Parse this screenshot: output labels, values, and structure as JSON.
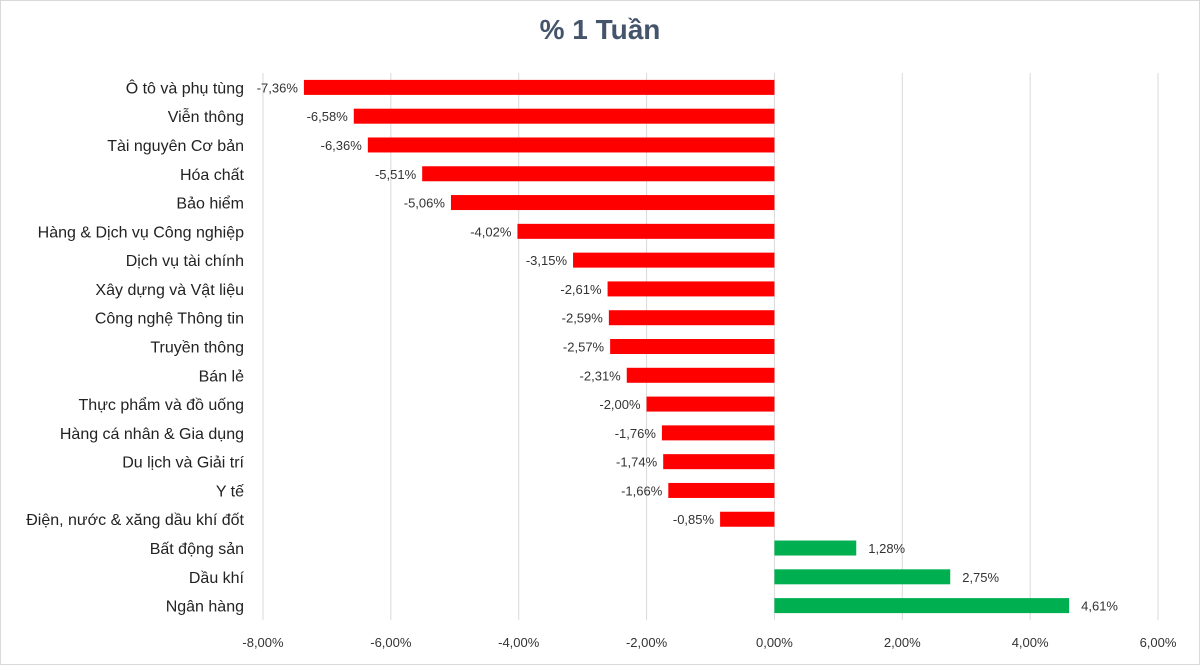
{
  "chart_data": {
    "type": "bar",
    "orientation": "horizontal",
    "title": "% 1 Tuần",
    "categories": [
      "Ô tô và phụ tùng",
      "Viễn thông",
      "Tài nguyên Cơ bản",
      "Hóa chất",
      "Bảo hiểm",
      "Hàng & Dịch vụ Công nghiệp",
      "Dịch vụ tài chính",
      "Xây dựng và Vật liệu",
      "Công nghệ Thông tin",
      "Truyền thông",
      "Bán lẻ",
      "Thực phẩm và đồ uống",
      "Hàng cá nhân & Gia dụng",
      "Du lịch và Giải trí",
      "Y tế",
      "Điện, nước & xăng dầu khí đốt",
      "Bất động sản",
      "Dầu khí",
      "Ngân hàng"
    ],
    "values": [
      -7.36,
      -6.58,
      -6.36,
      -5.51,
      -5.06,
      -4.02,
      -3.15,
      -2.61,
      -2.59,
      -2.57,
      -2.31,
      -2.0,
      -1.76,
      -1.74,
      -1.66,
      -0.85,
      1.28,
      2.75,
      4.61
    ],
    "value_labels": [
      "-7,36%",
      "-6,58%",
      "-6,36%",
      "-5,51%",
      "-5,06%",
      "-4,02%",
      "-3,15%",
      "-2,61%",
      "-2,59%",
      "-2,57%",
      "-2,31%",
      "-2,00%",
      "-1,76%",
      "-1,74%",
      "-1,66%",
      "-0,85%",
      "1,28%",
      "2,75%",
      "4,61%"
    ],
    "xlim": [
      -8,
      6
    ],
    "xticks": [
      -8,
      -6,
      -4,
      -2,
      0,
      2,
      4,
      6
    ],
    "xtick_labels": [
      "-8,00%",
      "-6,00%",
      "-4,00%",
      "-2,00%",
      "0,00%",
      "2,00%",
      "4,00%",
      "6,00%"
    ],
    "grid": "vertical",
    "colors": {
      "negative": "#ff0000",
      "positive": "#00b050",
      "grid": "#d9d9d9",
      "title": "#44546a"
    }
  }
}
